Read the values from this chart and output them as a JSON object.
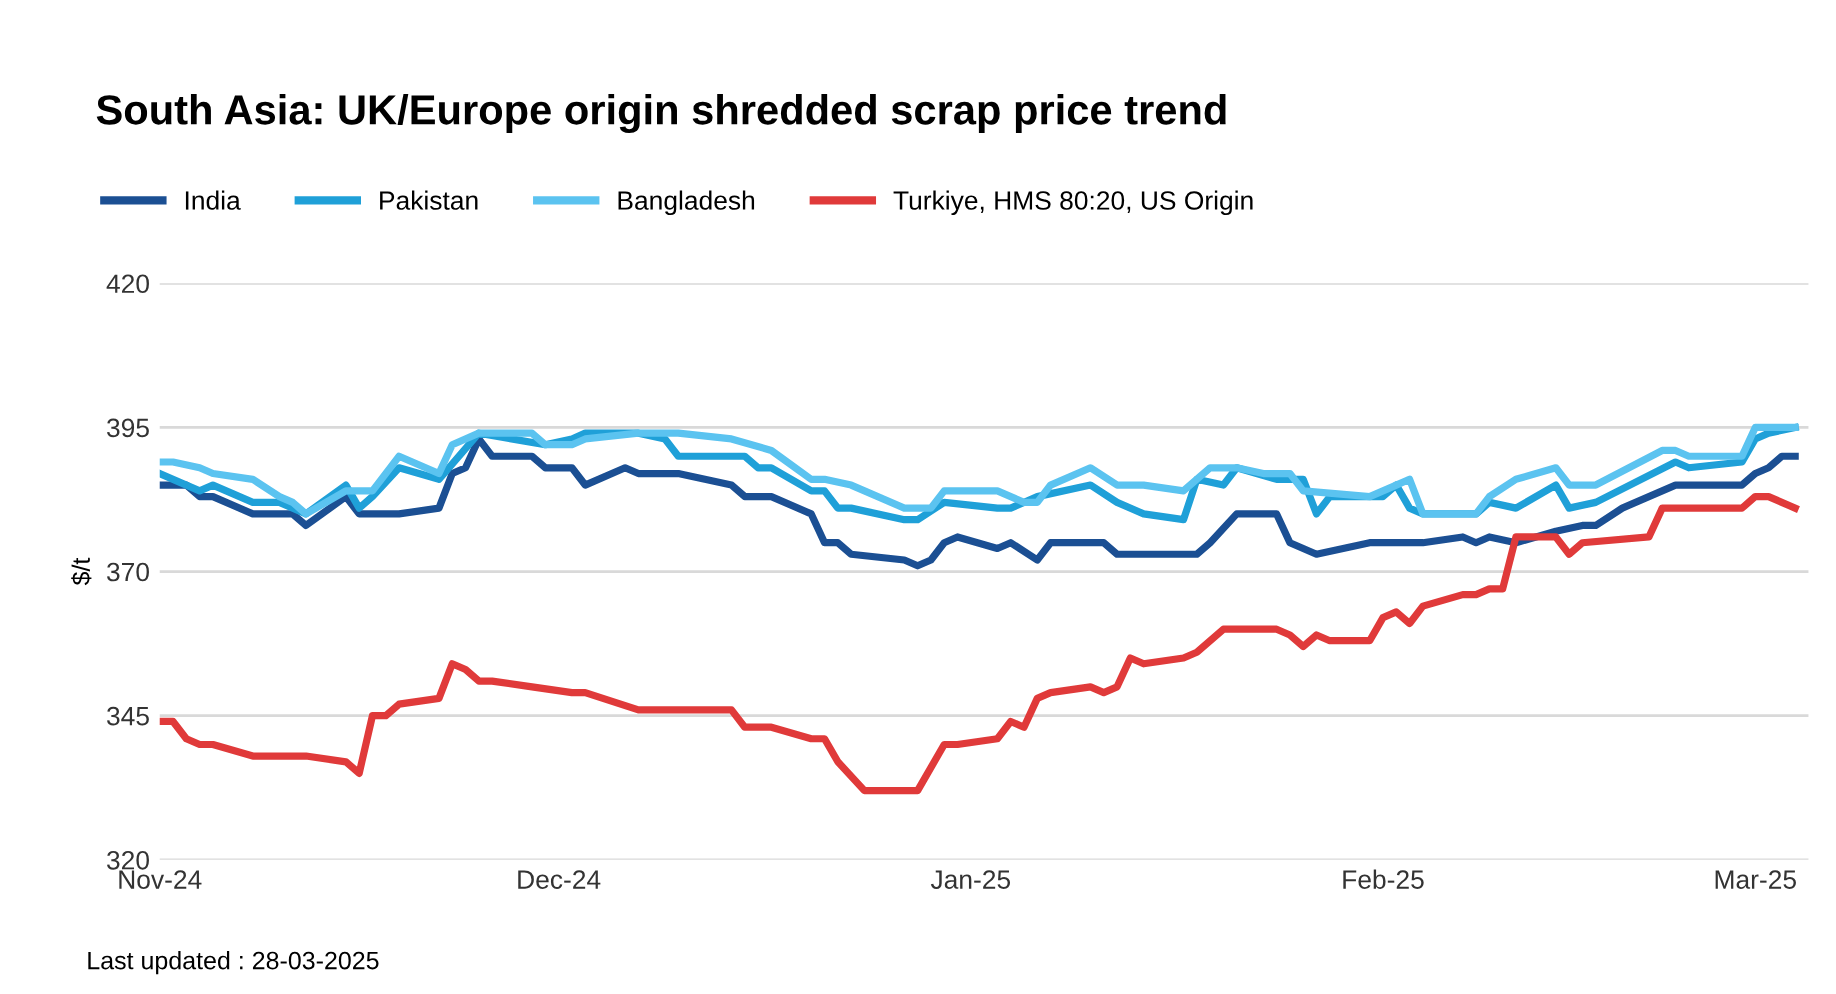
{
  "chart_data": {
    "type": "line",
    "title": "South Asia: UK/Europe origin shredded scrap price trend",
    "ylabel": "$/t",
    "annotations": [
      "Last updated : 28-03-2025"
    ],
    "ylim": [
      320,
      420
    ],
    "yticks": [
      320,
      345,
      370,
      395,
      420
    ],
    "xlim": [
      "2024-11-01",
      "2025-03-05"
    ],
    "xticks": [
      {
        "value": "2024-11-01",
        "label": "Nov-24"
      },
      {
        "value": "2024-12-01",
        "label": "Dec-24"
      },
      {
        "value": "2025-01-01",
        "label": "Jan-25"
      },
      {
        "value": "2025-02-01",
        "label": "Feb-25"
      },
      {
        "value": "2025-03-01",
        "label": "Mar-25"
      }
    ],
    "grid": "y",
    "legend": "top left",
    "marker": "none",
    "line_style": "solid",
    "series": [
      {
        "name": "India",
        "color": "#1b4f93",
        "x": [
          "2024-11-01",
          "2024-11-03",
          "2024-11-04",
          "2024-11-05",
          "2024-11-08",
          "2024-11-11",
          "2024-11-12",
          "2024-11-15",
          "2024-11-16",
          "2024-11-19",
          "2024-11-22",
          "2024-11-23",
          "2024-11-24",
          "2024-11-25",
          "2024-11-26",
          "2024-11-29",
          "2024-11-30",
          "2024-12-02",
          "2024-12-03",
          "2024-12-06",
          "2024-12-07",
          "2024-12-10",
          "2024-12-14",
          "2024-12-15",
          "2024-12-17",
          "2024-12-20",
          "2024-12-21",
          "2024-12-22",
          "2024-12-23",
          "2024-12-27",
          "2024-12-28",
          "2024-12-29",
          "2024-12-30",
          "2024-12-31",
          "2025-01-03",
          "2025-01-04",
          "2025-01-06",
          "2025-01-07",
          "2025-01-11",
          "2025-01-12",
          "2025-01-18",
          "2025-01-19",
          "2025-01-21",
          "2025-01-24",
          "2025-01-25",
          "2025-01-27",
          "2025-01-31",
          "2025-02-04",
          "2025-02-07",
          "2025-02-08",
          "2025-02-09",
          "2025-02-11",
          "2025-02-14",
          "2025-02-16",
          "2025-02-17",
          "2025-02-19",
          "2025-02-23",
          "2025-02-28",
          "2025-03-01",
          "2025-03-02",
          "2025-03-03",
          "2025-03-04"
        ],
        "values": [
          385,
          385,
          383,
          383,
          380,
          380,
          378,
          383,
          380,
          380,
          381,
          387,
          388,
          393,
          390,
          390,
          388,
          388,
          385,
          388,
          387,
          387,
          385,
          383,
          383,
          380,
          375,
          375,
          373,
          372,
          371,
          372,
          375,
          376,
          374,
          375,
          372,
          375,
          375,
          373,
          373,
          375,
          380,
          380,
          375,
          373,
          375,
          375,
          376,
          375,
          376,
          375,
          377,
          378,
          378,
          381,
          385,
          385,
          387,
          388,
          390,
          390
        ]
      },
      {
        "name": "Pakistan",
        "color": "#1fa0d8",
        "x": [
          "2024-11-01",
          "2024-11-03",
          "2024-11-04",
          "2024-11-05",
          "2024-11-08",
          "2024-11-10",
          "2024-11-12",
          "2024-11-15",
          "2024-11-16",
          "2024-11-17",
          "2024-11-19",
          "2024-11-22",
          "2024-11-25",
          "2024-11-30",
          "2024-12-02",
          "2024-12-03",
          "2024-12-07",
          "2024-12-09",
          "2024-12-10",
          "2024-12-15",
          "2024-12-16",
          "2024-12-17",
          "2024-12-20",
          "2024-12-21",
          "2024-12-22",
          "2024-12-23",
          "2024-12-27",
          "2024-12-28",
          "2024-12-30",
          "2025-01-03",
          "2025-01-04",
          "2025-01-06",
          "2025-01-10",
          "2025-01-12",
          "2025-01-14",
          "2025-01-17",
          "2025-01-18",
          "2025-01-20",
          "2025-01-21",
          "2025-01-24",
          "2025-01-26",
          "2025-01-27",
          "2025-01-28",
          "2025-02-01",
          "2025-02-02",
          "2025-02-03",
          "2025-02-04",
          "2025-02-08",
          "2025-02-09",
          "2025-02-11",
          "2025-02-14",
          "2025-02-15",
          "2025-02-17",
          "2025-02-23",
          "2025-02-24",
          "2025-02-28",
          "2025-03-01",
          "2025-03-02",
          "2025-03-04"
        ],
        "values": [
          387,
          385,
          384,
          385,
          382,
          382,
          380,
          385,
          381,
          383,
          388,
          386,
          394,
          392,
          393,
          394,
          394,
          393,
          390,
          390,
          388,
          388,
          384,
          384,
          381,
          381,
          379,
          379,
          382,
          381,
          381,
          383,
          385,
          382,
          380,
          379,
          386,
          385,
          388,
          386,
          386,
          380,
          383,
          383,
          385,
          381,
          380,
          380,
          382,
          381,
          385,
          381,
          382,
          389,
          388,
          389,
          393,
          394,
          395
        ]
      },
      {
        "name": "Bangladesh",
        "color": "#5bc3f0",
        "x": [
          "2024-11-01",
          "2024-11-02",
          "2024-11-04",
          "2024-11-05",
          "2024-11-08",
          "2024-11-10",
          "2024-11-11",
          "2024-11-12",
          "2024-11-15",
          "2024-11-17",
          "2024-11-19",
          "2024-11-22",
          "2024-11-23",
          "2024-11-25",
          "2024-11-29",
          "2024-11-30",
          "2024-12-02",
          "2024-12-03",
          "2024-12-07",
          "2024-12-10",
          "2024-12-14",
          "2024-12-17",
          "2024-12-20",
          "2024-12-21",
          "2024-12-23",
          "2024-12-27",
          "2024-12-29",
          "2024-12-30",
          "2025-01-03",
          "2025-01-05",
          "2025-01-06",
          "2025-01-07",
          "2025-01-10",
          "2025-01-12",
          "2025-01-14",
          "2025-01-17",
          "2025-01-19",
          "2025-01-21",
          "2025-01-23",
          "2025-01-25",
          "2025-01-26",
          "2025-01-31",
          "2025-02-02",
          "2025-02-03",
          "2025-02-04",
          "2025-02-08",
          "2025-02-09",
          "2025-02-11",
          "2025-02-14",
          "2025-02-15",
          "2025-02-17",
          "2025-02-22",
          "2025-02-23",
          "2025-02-24",
          "2025-02-28",
          "2025-03-01",
          "2025-03-04"
        ],
        "values": [
          389,
          389,
          388,
          387,
          386,
          383,
          382,
          380,
          384,
          384,
          390,
          387,
          392,
          394,
          394,
          392,
          392,
          393,
          394,
          394,
          393,
          391,
          386,
          386,
          385,
          381,
          381,
          384,
          384,
          382,
          382,
          385,
          388,
          385,
          385,
          384,
          388,
          388,
          387,
          387,
          384,
          383,
          385,
          386,
          380,
          380,
          383,
          386,
          388,
          385,
          385,
          391,
          391,
          390,
          390,
          395,
          395
        ]
      },
      {
        "name": "Turkiye, HMS 80:20, US Origin",
        "color": "#e03a3a",
        "x": [
          "2024-11-01",
          "2024-11-02",
          "2024-11-03",
          "2024-11-04",
          "2024-11-05",
          "2024-11-08",
          "2024-11-12",
          "2024-11-15",
          "2024-11-16",
          "2024-11-17",
          "2024-11-18",
          "2024-11-19",
          "2024-11-22",
          "2024-11-23",
          "2024-11-24",
          "2024-11-25",
          "2024-11-26",
          "2024-11-29",
          "2024-12-02",
          "2024-12-03",
          "2024-12-07",
          "2024-12-14",
          "2024-12-15",
          "2024-12-17",
          "2024-12-20",
          "2024-12-21",
          "2024-12-22",
          "2024-12-24",
          "2024-12-28",
          "2024-12-30",
          "2024-12-31",
          "2025-01-03",
          "2025-01-04",
          "2025-01-05",
          "2025-01-06",
          "2025-01-07",
          "2025-01-10",
          "2025-01-11",
          "2025-01-12",
          "2025-01-13",
          "2025-01-14",
          "2025-01-17",
          "2025-01-18",
          "2025-01-20",
          "2025-01-24",
          "2025-01-25",
          "2025-01-26",
          "2025-01-27",
          "2025-01-28",
          "2025-01-31",
          "2025-02-01",
          "2025-02-02",
          "2025-02-03",
          "2025-02-04",
          "2025-02-07",
          "2025-02-08",
          "2025-02-09",
          "2025-02-10",
          "2025-02-11",
          "2025-02-14",
          "2025-02-15",
          "2025-02-16",
          "2025-02-21",
          "2025-02-22",
          "2025-02-28",
          "2025-03-01",
          "2025-03-02",
          "2025-03-04"
        ],
        "values": [
          344,
          344,
          341,
          340,
          340,
          338,
          338,
          337,
          335,
          345,
          345,
          347,
          348,
          354,
          353,
          351,
          351,
          350,
          349,
          349,
          346,
          346,
          343,
          343,
          341,
          341,
          337,
          332,
          332,
          340,
          340,
          341,
          344,
          343,
          348,
          349,
          350,
          349,
          350,
          355,
          354,
          355,
          356,
          360,
          360,
          359,
          357,
          359,
          358,
          358,
          362,
          363,
          361,
          364,
          366,
          366,
          367,
          367,
          376,
          376,
          373,
          375,
          376,
          381,
          381,
          383,
          383,
          381
        ]
      }
    ]
  }
}
